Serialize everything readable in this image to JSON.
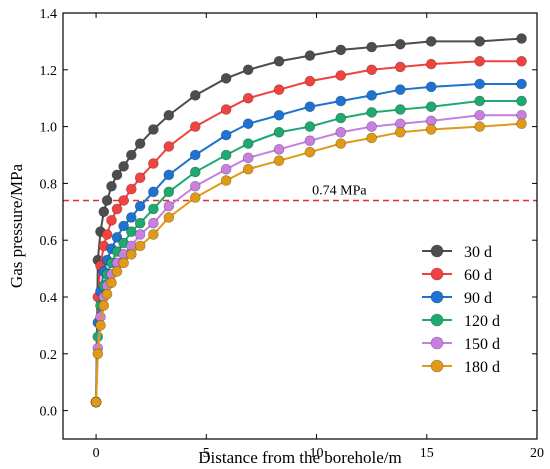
{
  "chart_data": {
    "type": "line",
    "xlabel": "Distance from the borehole/m",
    "ylabel": "Gas pressure/MPa",
    "xlim": [
      -1.5,
      20
    ],
    "ylim": [
      -0.1,
      1.4
    ],
    "xticks": [
      0,
      5,
      10,
      15,
      20
    ],
    "yticks": [
      0.0,
      0.2,
      0.4,
      0.6,
      0.8,
      1.0,
      1.2,
      1.4
    ],
    "grid": false,
    "legend_position": "right",
    "reference_line": {
      "y": 0.74,
      "label": "0.74 MPa",
      "color": "#e0312c",
      "style": "dashed"
    },
    "x": [
      0,
      0.08,
      0.2,
      0.35,
      0.5,
      0.7,
      0.95,
      1.25,
      1.6,
      2.0,
      2.6,
      3.3,
      4.5,
      5.9,
      6.9,
      8.3,
      9.7,
      11.1,
      12.5,
      13.8,
      15.2,
      17.4,
      19.3
    ],
    "series": [
      {
        "name": "30 d",
        "color": "#4d4d4d",
        "values": [
          0.03,
          0.53,
          0.63,
          0.7,
          0.74,
          0.79,
          0.83,
          0.86,
          0.9,
          0.94,
          0.99,
          1.04,
          1.11,
          1.17,
          1.2,
          1.23,
          1.25,
          1.27,
          1.28,
          1.29,
          1.3,
          1.3,
          1.31
        ]
      },
      {
        "name": "60 d",
        "color": "#f0423f",
        "values": [
          0.03,
          0.4,
          0.51,
          0.58,
          0.62,
          0.67,
          0.71,
          0.74,
          0.78,
          0.82,
          0.87,
          0.93,
          1.0,
          1.06,
          1.1,
          1.13,
          1.16,
          1.18,
          1.2,
          1.21,
          1.22,
          1.23,
          1.23
        ]
      },
      {
        "name": "90 d",
        "color": "#1e73d2",
        "values": [
          0.03,
          0.31,
          0.42,
          0.49,
          0.53,
          0.57,
          0.61,
          0.65,
          0.68,
          0.72,
          0.77,
          0.83,
          0.9,
          0.97,
          1.01,
          1.04,
          1.07,
          1.09,
          1.11,
          1.13,
          1.14,
          1.15,
          1.15
        ]
      },
      {
        "name": "120 d",
        "color": "#1fa870",
        "values": [
          0.03,
          0.26,
          0.37,
          0.44,
          0.48,
          0.52,
          0.56,
          0.59,
          0.63,
          0.66,
          0.71,
          0.77,
          0.84,
          0.9,
          0.94,
          0.98,
          1.0,
          1.03,
          1.05,
          1.06,
          1.07,
          1.09,
          1.09
        ]
      },
      {
        "name": "150 d",
        "color": "#c77fe0",
        "values": [
          0.03,
          0.22,
          0.33,
          0.4,
          0.44,
          0.48,
          0.52,
          0.55,
          0.58,
          0.62,
          0.66,
          0.72,
          0.79,
          0.85,
          0.89,
          0.92,
          0.95,
          0.98,
          1.0,
          1.01,
          1.02,
          1.04,
          1.04
        ]
      },
      {
        "name": "180 d",
        "color": "#e09a17",
        "values": [
          0.03,
          0.2,
          0.3,
          0.37,
          0.41,
          0.45,
          0.49,
          0.52,
          0.55,
          0.58,
          0.62,
          0.68,
          0.75,
          0.81,
          0.85,
          0.88,
          0.91,
          0.94,
          0.96,
          0.98,
          0.99,
          1.0,
          1.01
        ]
      }
    ]
  }
}
